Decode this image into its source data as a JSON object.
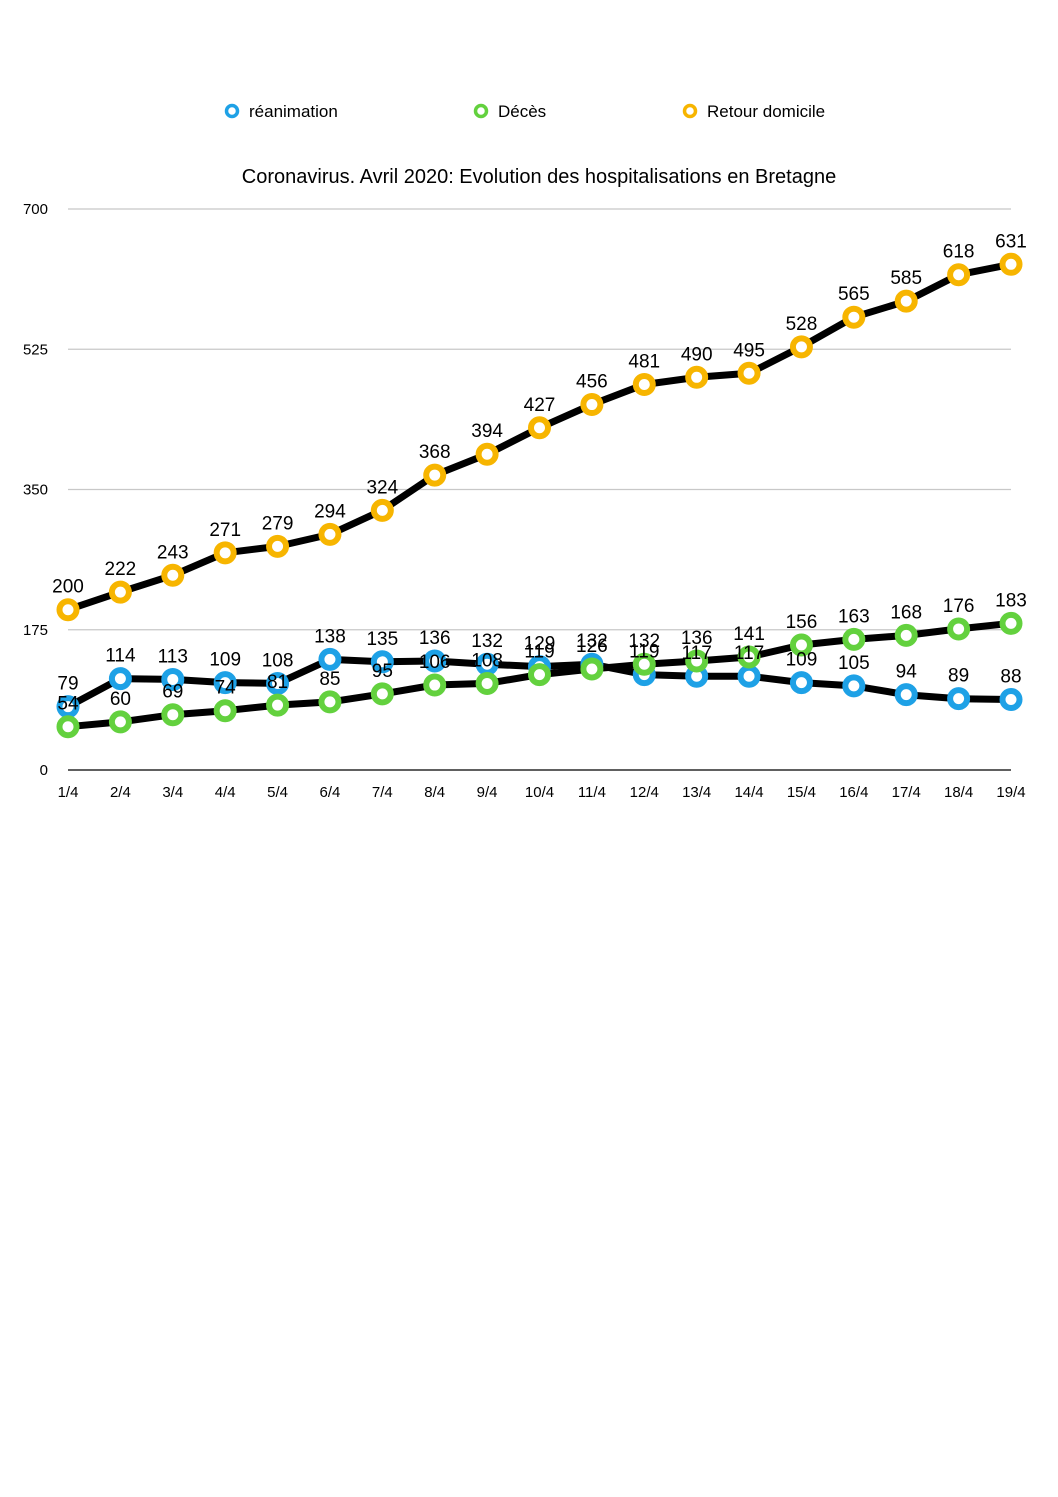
{
  "chart_data": {
    "type": "line",
    "title": "Coronavirus. Avril 2020: Evolution des hospitalisations en Bretagne",
    "xlabel": "",
    "ylabel": "",
    "categories": [
      "1/4",
      "2/4",
      "3/4",
      "4/4",
      "5/4",
      "6/4",
      "7/4",
      "8/4",
      "9/4",
      "10/4",
      "11/4",
      "12/4",
      "13/4",
      "14/4",
      "15/4",
      "16/4",
      "17/4",
      "18/4",
      "19/4"
    ],
    "ylim": [
      0,
      700
    ],
    "yticks": [
      0,
      175,
      350,
      525,
      700
    ],
    "grid": true,
    "legend": "top",
    "series": [
      {
        "name": "réanimation",
        "color": "#1ea1e6",
        "values": [
          79,
          114,
          113,
          109,
          108,
          138,
          135,
          136,
          132,
          129,
          132,
          119,
          117,
          117,
          109,
          105,
          94,
          89,
          88
        ]
      },
      {
        "name": "Décès",
        "color": "#63d13e",
        "values": [
          54,
          60,
          69,
          74,
          81,
          85,
          95,
          106,
          108,
          119,
          126,
          132,
          136,
          141,
          156,
          163,
          168,
          176,
          183
        ]
      },
      {
        "name": "Retour domicile",
        "color": "#f7b500",
        "values": [
          200,
          222,
          243,
          271,
          279,
          294,
          324,
          368,
          394,
          427,
          456,
          481,
          490,
          495,
          528,
          565,
          585,
          618,
          631
        ]
      }
    ]
  }
}
